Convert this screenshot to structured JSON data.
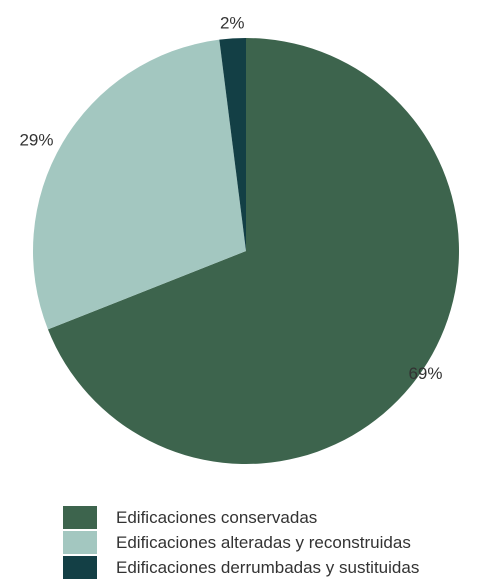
{
  "chart_data": {
    "type": "pie",
    "slices": [
      {
        "label": "Edificaciones conservadas",
        "value": 69,
        "value_label": "69%",
        "color": "#3d644d"
      },
      {
        "label": "Edificaciones alteradas y reconstruidas",
        "value": 29,
        "value_label": "29%",
        "color": "#a3c7c0"
      },
      {
        "label": "Edificaciones derrumbadas y sustituidas",
        "value": 2,
        "value_label": "2%",
        "color": "#133f45"
      }
    ],
    "start_angle": "top",
    "direction": "clockwise",
    "legend_position": "bottom"
  }
}
